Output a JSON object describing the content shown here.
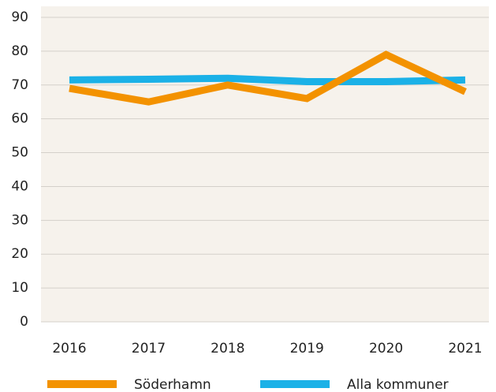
{
  "chart_data": {
    "type": "line",
    "categories": [
      "2016",
      "2017",
      "2018",
      "2019",
      "2020",
      "2021"
    ],
    "series": [
      {
        "name": "Söderhamn",
        "color": "#f39200",
        "values": [
          69,
          65,
          70,
          66,
          79,
          68
        ]
      },
      {
        "name": "Alla kommuner",
        "color": "#1bb1e7",
        "values": [
          71.5,
          71.7,
          72,
          71,
          71,
          71.5
        ]
      }
    ],
    "ylim": [
      0,
      90
    ],
    "yticks": [
      0,
      10,
      20,
      30,
      40,
      50,
      60,
      70,
      80,
      90
    ],
    "grid": true,
    "legend": "bottom"
  }
}
